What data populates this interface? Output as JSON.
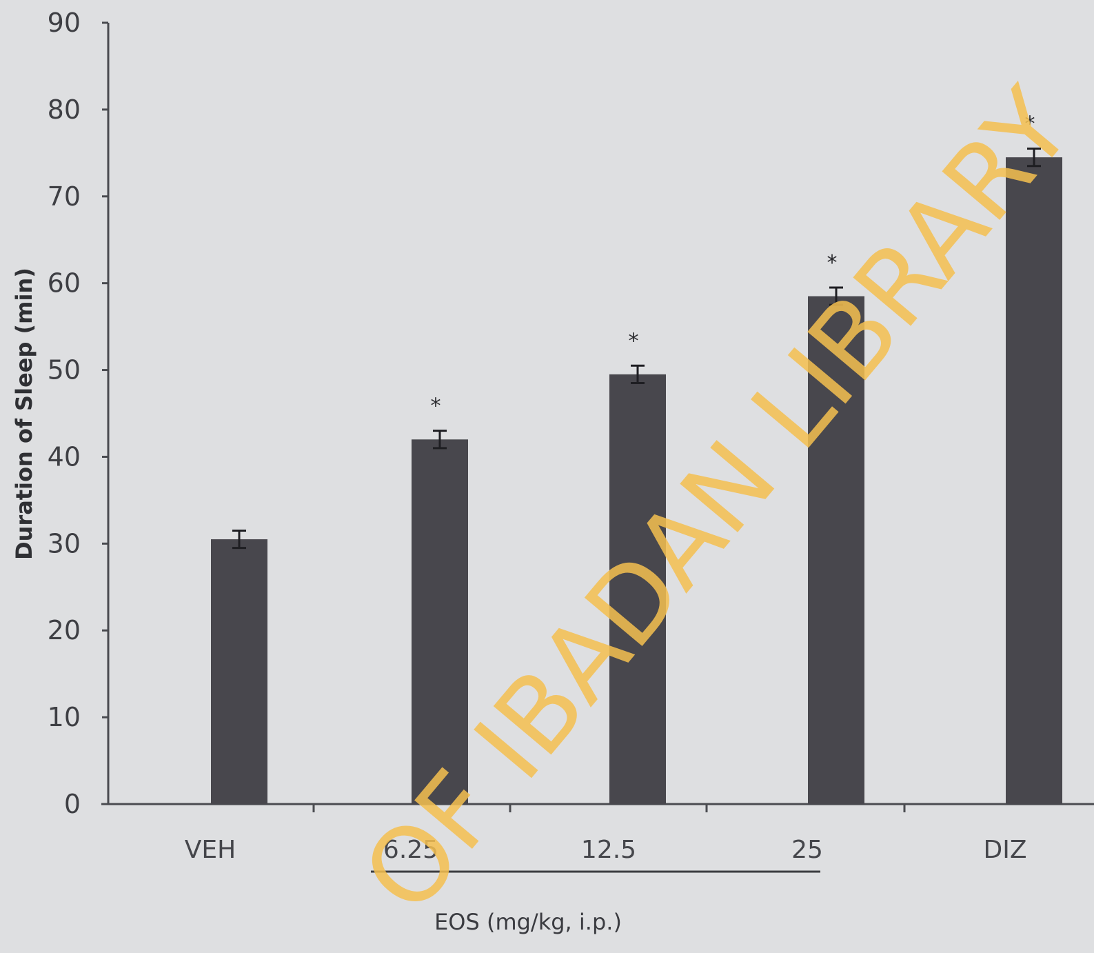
{
  "chart_data": {
    "type": "bar",
    "categories": [
      "VEH",
      "6.25",
      "12.5",
      "25",
      "DIZ"
    ],
    "values": [
      30.5,
      42,
      49.5,
      58.5,
      74.5
    ],
    "errors": [
      1.0,
      1.0,
      1.0,
      1.0,
      1.0
    ],
    "significance": [
      "",
      "*",
      "*",
      "*",
      "*"
    ],
    "ylabel": "Duration of Sleep (min)",
    "group_label": "EOS (mg/kg, i.p.)",
    "group_categories": [
      "6.25",
      "12.5",
      "25"
    ],
    "ylim": [
      0,
      90
    ],
    "yticks": [
      "0",
      "10",
      "20",
      "30",
      "40",
      "50",
      "60",
      "70",
      "80",
      "90"
    ],
    "grid": false,
    "bar_color": "#48474d"
  },
  "watermark": "OF IBADAN LIBRARY"
}
